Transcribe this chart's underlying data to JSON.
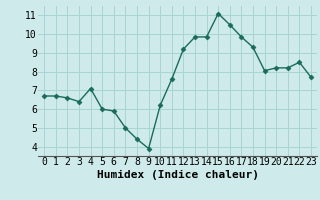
{
  "x": [
    0,
    1,
    2,
    3,
    4,
    5,
    6,
    7,
    8,
    9,
    10,
    11,
    12,
    13,
    14,
    15,
    16,
    17,
    18,
    19,
    20,
    21,
    22,
    23
  ],
  "y": [
    6.7,
    6.7,
    6.6,
    6.4,
    7.1,
    6.0,
    5.9,
    5.0,
    4.4,
    3.9,
    6.2,
    7.6,
    9.2,
    9.85,
    9.85,
    11.1,
    10.5,
    9.85,
    9.3,
    8.05,
    8.2,
    8.2,
    8.5,
    7.7
  ],
  "xlabel": "Humidex (Indice chaleur)",
  "xlim": [
    -0.5,
    23.5
  ],
  "ylim": [
    3.5,
    11.5
  ],
  "yticks": [
    4,
    5,
    6,
    7,
    8,
    9,
    10,
    11
  ],
  "xticks": [
    0,
    1,
    2,
    3,
    4,
    5,
    6,
    7,
    8,
    9,
    10,
    11,
    12,
    13,
    14,
    15,
    16,
    17,
    18,
    19,
    20,
    21,
    22,
    23
  ],
  "line_color": "#1a6b5a",
  "marker": "D",
  "marker_size": 2.5,
  "bg_color": "#ceeaea",
  "grid_color": "#a8d4d4",
  "xlabel_fontsize": 8,
  "tick_fontsize": 7
}
